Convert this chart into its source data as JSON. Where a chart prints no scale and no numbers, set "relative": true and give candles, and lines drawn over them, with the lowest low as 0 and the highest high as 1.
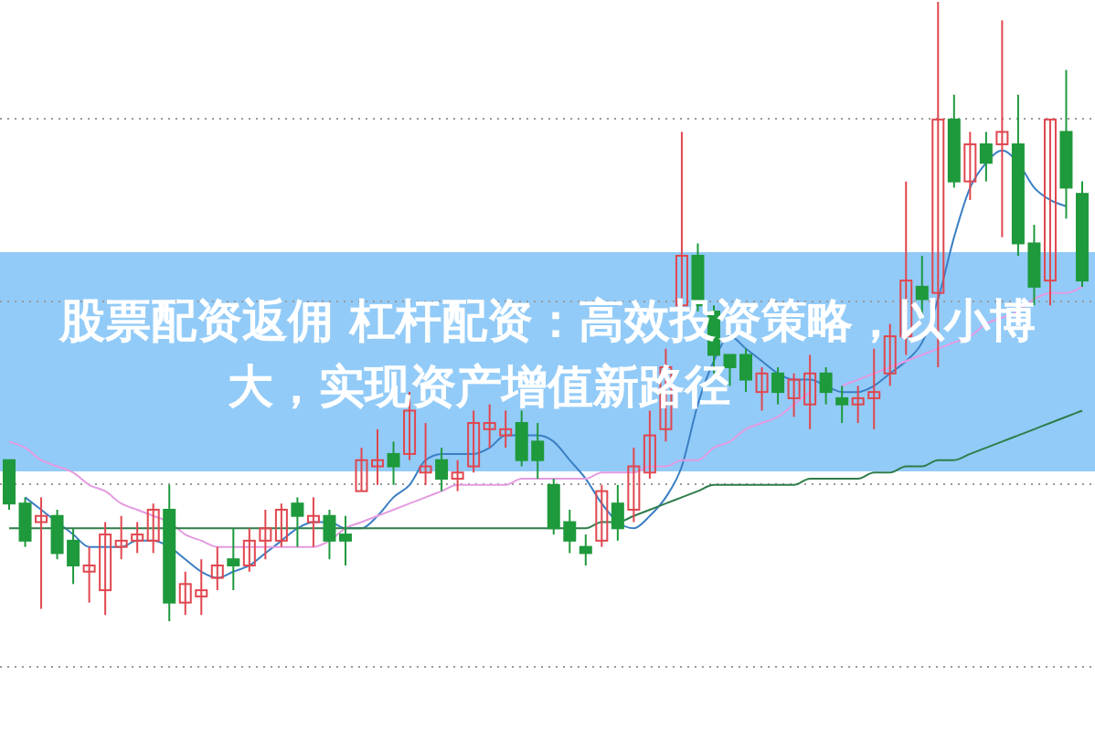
{
  "chart_data": {
    "type": "candlestick",
    "relative": true,
    "title": "股票配资返佣 杠杆配资：高效投资策略，以小博大，实现资产增值新路径",
    "grid": true,
    "categories": [
      null,
      null,
      null,
      null,
      null,
      null,
      null,
      null,
      null,
      null,
      null,
      null,
      null,
      null,
      null,
      null,
      null,
      null,
      null,
      null,
      null,
      null,
      null,
      null,
      null,
      null,
      null,
      null,
      null,
      null,
      null,
      null,
      null,
      null,
      null,
      null,
      null,
      null,
      null,
      null,
      null,
      null,
      null,
      null,
      null,
      null,
      null,
      null,
      null,
      null,
      null,
      null,
      null,
      null,
      null,
      null,
      null,
      null,
      null,
      null,
      null,
      null,
      null,
      null,
      null,
      null,
      null,
      null
    ],
    "ohlc": [
      [
        0.26,
        0.26,
        0.18,
        0.19
      ],
      [
        0.19,
        0.2,
        0.12,
        0.13
      ],
      [
        0.16,
        0.2,
        0.02,
        0.17
      ],
      [
        0.17,
        0.18,
        0.1,
        0.11
      ],
      [
        0.13,
        0.15,
        0.06,
        0.09
      ],
      [
        0.08,
        0.12,
        0.03,
        0.09
      ],
      [
        0.05,
        0.16,
        0.01,
        0.14
      ],
      [
        0.12,
        0.17,
        0.1,
        0.13
      ],
      [
        0.13,
        0.16,
        0.11,
        0.14
      ],
      [
        0.13,
        0.19,
        0.11,
        0.18
      ],
      [
        0.18,
        0.22,
        0,
        0.03
      ],
      [
        0.03,
        0.08,
        0.01,
        0.06
      ],
      [
        0.04,
        0.1,
        0.01,
        0.05
      ],
      [
        0.07,
        0.12,
        0.05,
        0.09
      ],
      [
        0.1,
        0.15,
        0.05,
        0.09
      ],
      [
        0.09,
        0.15,
        0.08,
        0.13
      ],
      [
        0.13,
        0.18,
        0.1,
        0.15
      ],
      [
        0.13,
        0.19,
        0.12,
        0.18
      ],
      [
        0.19,
        0.2,
        0.12,
        0.17
      ],
      [
        0.16,
        0.2,
        0.12,
        0.17
      ],
      [
        0.17,
        0.18,
        0.1,
        0.13
      ],
      [
        0.14,
        0.17,
        0.09,
        0.13
      ],
      [
        0.21,
        0.28,
        0.21,
        0.26
      ],
      [
        0.25,
        0.31,
        0.22,
        0.26
      ],
      [
        0.27,
        0.29,
        0.22,
        0.25
      ],
      [
        0.27,
        0.37,
        0.26,
        0.34
      ],
      [
        0.24,
        0.32,
        0.22,
        0.25
      ],
      [
        0.26,
        0.28,
        0.21,
        0.23
      ],
      [
        0.23,
        0.26,
        0.21,
        0.24
      ],
      [
        0.25,
        0.34,
        0.24,
        0.32
      ],
      [
        0.31,
        0.35,
        0.28,
        0.32
      ],
      [
        0.3,
        0.34,
        0.28,
        0.31
      ],
      [
        0.32,
        0.34,
        0.25,
        0.26
      ],
      [
        0.29,
        0.32,
        0.23,
        0.26
      ],
      [
        0.22,
        0.23,
        0.14,
        0.15
      ],
      [
        0.16,
        0.18,
        0.11,
        0.13
      ],
      [
        0.12,
        0.14,
        0.09,
        0.11
      ],
      [
        0.13,
        0.22,
        0.12,
        0.21
      ],
      [
        0.19,
        0.22,
        0.13,
        0.15
      ],
      [
        0.18,
        0.28,
        0.16,
        0.25
      ],
      [
        0.24,
        0.34,
        0.23,
        0.3
      ],
      [
        0.31,
        0.44,
        0.29,
        0.41
      ],
      [
        0.51,
        0.79,
        0.5,
        0.59
      ],
      [
        0.59,
        0.61,
        0.5,
        0.51
      ],
      [
        0.5,
        0.51,
        0.4,
        0.43
      ],
      [
        0.43,
        0.43,
        0.38,
        0.41
      ],
      [
        0.43,
        0.44,
        0.37,
        0.39
      ],
      [
        0.37,
        0.41,
        0.34,
        0.4
      ],
      [
        0.4,
        0.41,
        0.35,
        0.37
      ],
      [
        0.36,
        0.4,
        0.33,
        0.39
      ],
      [
        0.35,
        0.43,
        0.31,
        0.4
      ],
      [
        0.4,
        0.41,
        0.35,
        0.37
      ],
      [
        0.36,
        0.38,
        0.32,
        0.35
      ],
      [
        0.35,
        0.38,
        0.32,
        0.36
      ],
      [
        0.36,
        0.44,
        0.31,
        0.37
      ],
      [
        0.4,
        0.48,
        0.38,
        0.46
      ],
      [
        0.46,
        0.71,
        0.43,
        0.55
      ],
      [
        0.54,
        0.59,
        0.49,
        0.52
      ],
      [
        0.53,
        1,
        0.41,
        0.81
      ],
      [
        0.81,
        0.85,
        0.7,
        0.71
      ],
      [
        0.71,
        0.79,
        0.68,
        0.77
      ],
      [
        0.77,
        0.79,
        0.71,
        0.74
      ],
      [
        0.77,
        0.97,
        0.62,
        0.79
      ],
      [
        0.77,
        0.85,
        0.59,
        0.61
      ],
      [
        0.61,
        0.64,
        0.51,
        0.54
      ],
      [
        0.55,
        0.81,
        0.51,
        0.81
      ],
      [
        0.79,
        0.89,
        0.65,
        0.7
      ],
      [
        0.69,
        0.71,
        0.54,
        0.55
      ]
    ],
    "series": [
      {
        "type": "line",
        "color": "#3b7fc4",
        "values": [
          null,
          0.2,
          0.18,
          0.16,
          0.14,
          0.12,
          0.12,
          0.12,
          0.13,
          0.13,
          0.12,
          0.1,
          0.08,
          0.07,
          0.08,
          0.09,
          0.11,
          0.13,
          0.15,
          0.16,
          0.16,
          0.15,
          0.15,
          0.17,
          0.2,
          0.22,
          0.26,
          0.27,
          0.27,
          0.27,
          0.28,
          0.3,
          0.3,
          0.3,
          0.29,
          0.26,
          0.23,
          0.19,
          0.16,
          0.15,
          0.17,
          0.2,
          0.25,
          0.35,
          0.42,
          0.46,
          0.44,
          0.42,
          0.4,
          0.39,
          0.39,
          0.38,
          0.37,
          0.37,
          0.38,
          0.4,
          0.42,
          0.45,
          0.52,
          0.62,
          0.7,
          0.74,
          0.76,
          0.74,
          0.7,
          0.68,
          0.67,
          null
        ]
      },
      {
        "type": "line",
        "color": "#e49be0",
        "values": [
          0.29,
          0.28,
          0.26,
          0.25,
          0.24,
          0.22,
          0.21,
          0.19,
          0.18,
          0.17,
          0.16,
          0.14,
          0.13,
          0.12,
          0.12,
          0.12,
          0.12,
          0.12,
          0.12,
          0.12,
          0.13,
          0.15,
          0.16,
          0.17,
          0.18,
          0.19,
          0.2,
          0.21,
          0.22,
          0.22,
          0.22,
          0.22,
          0.23,
          0.23,
          0.23,
          0.23,
          0.23,
          0.24,
          0.24,
          0.24,
          0.25,
          0.25,
          0.26,
          0.26,
          0.28,
          0.29,
          0.31,
          0.32,
          0.33,
          0.35,
          0.37,
          null,
          0.38,
          0.39,
          0.4,
          0.41,
          0.42,
          0.43,
          0.44,
          0.45,
          0.46,
          0.48,
          0.49,
          0.5,
          0.52,
          0.53,
          0.53,
          0.54
        ]
      },
      {
        "type": "line",
        "color": "#2e7d4a",
        "values": [
          0.15,
          0.15,
          0.15,
          0.15,
          0.15,
          0.15,
          0.15,
          0.15,
          0.15,
          0.15,
          0.15,
          0.15,
          0.15,
          0.15,
          0.15,
          0.15,
          0.15,
          0.15,
          0.15,
          0.15,
          0.15,
          0.15,
          0.15,
          0.15,
          0.15,
          0.15,
          0.15,
          0.15,
          0.15,
          0.15,
          0.15,
          0.15,
          0.15,
          0.15,
          0.15,
          0.15,
          0.15,
          0.16,
          0.16,
          0.17,
          0.18,
          0.19,
          0.2,
          0.21,
          0.22,
          0.22,
          0.22,
          0.22,
          0.22,
          0.22,
          0.23,
          0.23,
          0.23,
          0.23,
          0.24,
          0.24,
          0.25,
          0.25,
          0.26,
          0.26,
          0.27,
          0.28,
          0.29,
          0.3,
          0.31,
          0.32,
          0.33,
          0.34
        ]
      }
    ]
  }
}
